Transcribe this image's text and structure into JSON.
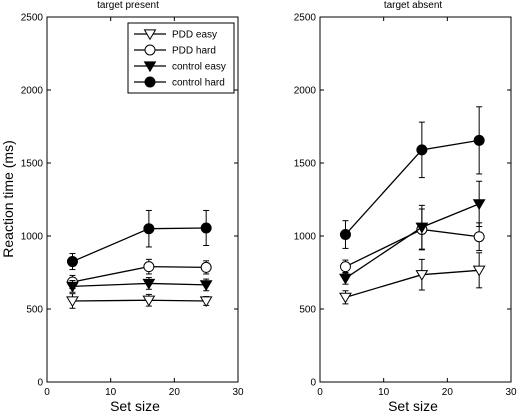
{
  "figure": {
    "ylabel": "Reaction time (ms)",
    "xlabel": "Set size"
  },
  "chart_data": [
    {
      "type": "line",
      "title": "target present",
      "xlabel": "Set size",
      "ylabel": "Reaction time (ms)",
      "xlim": [
        0,
        30
      ],
      "ylim": [
        0,
        2500
      ],
      "xticks": [
        0,
        10,
        20,
        30
      ],
      "yticks": [
        0,
        500,
        1000,
        1500,
        2000,
        2500
      ],
      "legend_position": "top-right",
      "x": [
        4,
        16,
        25
      ],
      "series": [
        {
          "name": "PDD easy",
          "marker": "triangle-down-open",
          "values": [
            555,
            560,
            555
          ],
          "errors": [
            50,
            40,
            30
          ]
        },
        {
          "name": "PDD hard",
          "marker": "circle-open",
          "values": [
            685,
            790,
            785
          ],
          "errors": [
            45,
            50,
            45
          ]
        },
        {
          "name": "control easy",
          "marker": "triangle-down-filled",
          "values": [
            655,
            675,
            665
          ],
          "errors": [
            40,
            40,
            40
          ]
        },
        {
          "name": "control hard",
          "marker": "circle-filled",
          "values": [
            825,
            1050,
            1055
          ],
          "errors": [
            55,
            125,
            120
          ]
        }
      ]
    },
    {
      "type": "line",
      "title": "target absent",
      "xlabel": "Set size",
      "ylabel": "",
      "xlim": [
        0,
        30
      ],
      "ylim": [
        0,
        2500
      ],
      "xticks": [
        0,
        10,
        20,
        30
      ],
      "yticks": [
        0,
        500,
        1000,
        1500,
        2000,
        2500
      ],
      "x": [
        4,
        16,
        25
      ],
      "series": [
        {
          "name": "PDD easy",
          "marker": "triangle-down-open",
          "values": [
            580,
            735,
            765
          ],
          "errors": [
            45,
            105,
            120
          ]
        },
        {
          "name": "PDD hard",
          "marker": "circle-open",
          "values": [
            790,
            1045,
            995
          ],
          "errors": [
            45,
            140,
            95
          ]
        },
        {
          "name": "control easy",
          "marker": "triangle-down-filled",
          "values": [
            710,
            1060,
            1220
          ],
          "errors": [
            40,
            150,
            155
          ]
        },
        {
          "name": "control hard",
          "marker": "circle-filled",
          "values": [
            1010,
            1590,
            1655
          ],
          "errors": [
            95,
            190,
            230
          ]
        }
      ]
    }
  ]
}
